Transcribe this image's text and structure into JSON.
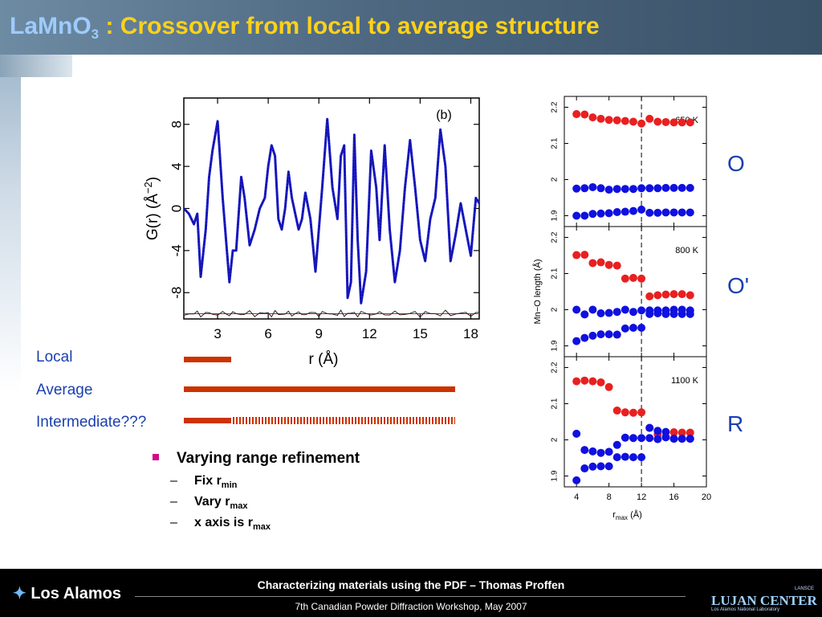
{
  "title": {
    "main": "LaMnO",
    "sub": "3",
    "rest": " : Crossover from local to average structure"
  },
  "chart_data": [
    {
      "type": "line",
      "panel_label": "(b)",
      "xlabel": "r  (Å)",
      "ylabel": "G(r)  (Å",
      "ylabel_exp": "−2",
      "ylabel_close": ")",
      "xlim": [
        1,
        18.5
      ],
      "ylim": [
        -10.5,
        10.5
      ],
      "xticks": [
        3,
        6,
        9,
        12,
        15,
        18
      ],
      "yticks": [
        -8,
        -4,
        0,
        4,
        8
      ],
      "series": [
        {
          "x": [
            1.0,
            1.3,
            1.6,
            1.8,
            2.0,
            2.3,
            2.5,
            2.7,
            3.0,
            3.3,
            3.5,
            3.7,
            3.9,
            4.1,
            4.4,
            4.6,
            4.9,
            5.2,
            5.5,
            5.8,
            6.0,
            6.2,
            6.4,
            6.6,
            6.8,
            7.0,
            7.2,
            7.4,
            7.6,
            7.8,
            8.0,
            8.2,
            8.5,
            8.8,
            9.0,
            9.2,
            9.5,
            9.8,
            10.1,
            10.3,
            10.5,
            10.7,
            10.9,
            11.1,
            11.3,
            11.5,
            11.8,
            12.1,
            12.4,
            12.6,
            12.9,
            13.2,
            13.5,
            13.8,
            14.1,
            14.4,
            14.7,
            15.0,
            15.3,
            15.6,
            15.9,
            16.2,
            16.5,
            16.8,
            17.1,
            17.4,
            17.7,
            18.0,
            18.3,
            18.5
          ],
          "y": [
            0,
            -0.5,
            -1.5,
            -0.5,
            -6.5,
            -2,
            3,
            5.5,
            8.3,
            1,
            -3,
            -7,
            -4,
            -4,
            3,
            1,
            -3.5,
            -2,
            0,
            1,
            4,
            6,
            5,
            -1,
            -2,
            0,
            3.5,
            1,
            -0.5,
            -2,
            -1,
            1.5,
            -1,
            -6,
            -2,
            2,
            8.5,
            2,
            -1,
            5,
            6,
            -8.5,
            -7,
            7,
            -3,
            -9,
            -6,
            5.5,
            2,
            -3,
            6,
            -2,
            -7,
            -4,
            2,
            6.5,
            2,
            -3,
            -5,
            -1,
            1,
            7.5,
            4,
            -5,
            -2.5,
            0.5,
            -2,
            -4.5,
            1,
            0.5
          ]
        }
      ],
      "difference_offset": -10
    },
    {
      "type": "scatter",
      "xlabel": "r",
      "xlabel_sub": "max",
      "xlabel_unit": "(Å)",
      "ylabel": "Mn−O length (Å)",
      "xlim": [
        2.5,
        20
      ],
      "ylim": [
        1.87,
        2.23
      ],
      "xticks": [
        4,
        8,
        12,
        16,
        20
      ],
      "yticks": [
        1.9,
        2,
        2.1,
        2.2
      ],
      "ytick_labels": [
        "1.9",
        "2",
        "2.1",
        "2.2"
      ],
      "dashed_line_x": 12,
      "colors": {
        "long_bond": "#e82020",
        "short_bond": "#1010e0"
      },
      "panels": [
        {
          "temperature": "650 K",
          "x": [
            4,
            5,
            6,
            7,
            8,
            9,
            10,
            11,
            12,
            13,
            14,
            15,
            16,
            17,
            18
          ],
          "red": [
            2.181,
            2.18,
            2.172,
            2.168,
            2.165,
            2.164,
            2.162,
            2.16,
            2.155,
            2.168,
            2.16,
            2.159,
            2.158,
            2.158,
            2.158
          ],
          "blue_top": [
            1.975,
            1.976,
            1.979,
            1.976,
            1.972,
            1.974,
            1.974,
            1.974,
            1.976,
            1.976,
            1.976,
            1.977,
            1.977,
            1.977,
            1.977
          ],
          "blue_bottom": [
            1.9,
            1.9,
            1.905,
            1.906,
            1.907,
            1.91,
            1.911,
            1.913,
            1.917,
            1.908,
            1.908,
            1.909,
            1.909,
            1.909,
            1.909
          ]
        },
        {
          "temperature": "800 K",
          "x": [
            4,
            5,
            6,
            7,
            8,
            9,
            10,
            11,
            12,
            13,
            14,
            15,
            16,
            17,
            18
          ],
          "red": [
            2.151,
            2.152,
            2.129,
            2.131,
            2.124,
            2.122,
            2.086,
            2.088,
            2.086,
            2.037,
            2.04,
            2.042,
            2.043,
            2.043,
            2.04
          ],
          "blue_top": [
            2.0,
            1.987,
            2.0,
            1.99,
            1.991,
            1.994,
            2.0,
            1.994,
            1.998,
            1.998,
            1.998,
            1.998,
            2.0,
            2.0,
            1.998
          ],
          "blue_bottom": [
            1.913,
            1.922,
            1.928,
            1.932,
            1.932,
            1.931,
            1.948,
            1.95,
            1.95,
            1.988,
            1.99,
            1.988,
            1.988,
            1.988,
            1.988
          ]
        },
        {
          "temperature": "1100 K",
          "x": [
            4,
            5,
            6,
            7,
            8,
            9,
            10,
            11,
            12,
            13,
            14,
            15,
            16,
            17,
            18
          ],
          "red": [
            2.162,
            2.164,
            2.162,
            2.159,
            2.146,
            2.081,
            2.076,
            2.075,
            2.076,
            2.033,
            2.015,
            2.008,
            2.021,
            2.02,
            2.02
          ],
          "blue_top": [
            2.017,
            1.972,
            1.968,
            1.964,
            1.967,
            1.986,
            2.006,
            2.005,
            2.005,
            2.033,
            2.025,
            2.022,
            2.003,
            2.003,
            2.003
          ],
          "blue_bottom": [
            1.888,
            1.921,
            1.926,
            1.927,
            1.927,
            1.952,
            1.953,
            1.952,
            1.952,
            2.005,
            2.002,
            2.007,
            2.003,
            2.003,
            2.003
          ]
        }
      ]
    }
  ],
  "right_labels": [
    "O",
    "O'",
    "R"
  ],
  "legend": {
    "local": "Local",
    "average": "Average",
    "intermediate": "Intermediate???"
  },
  "bullets": {
    "main": "Varying range refinement",
    "fix": "Fix r",
    "fix_sub": "min",
    "vary": "Vary r",
    "vary_sub": "max",
    "axis": "x axis is  r",
    "axis_sub": "max"
  },
  "footer": {
    "main": "Characterizing materials using the PDF – Thomas Proffen",
    "sub": "7th Canadian Powder Diffraction Workshop, May 2007",
    "logo_left": "Los Alamos",
    "logo_right": "LUJAN CENTER",
    "logo_right_small": "Los Alamos National Laboratory",
    "lansce": "LANSCE"
  }
}
